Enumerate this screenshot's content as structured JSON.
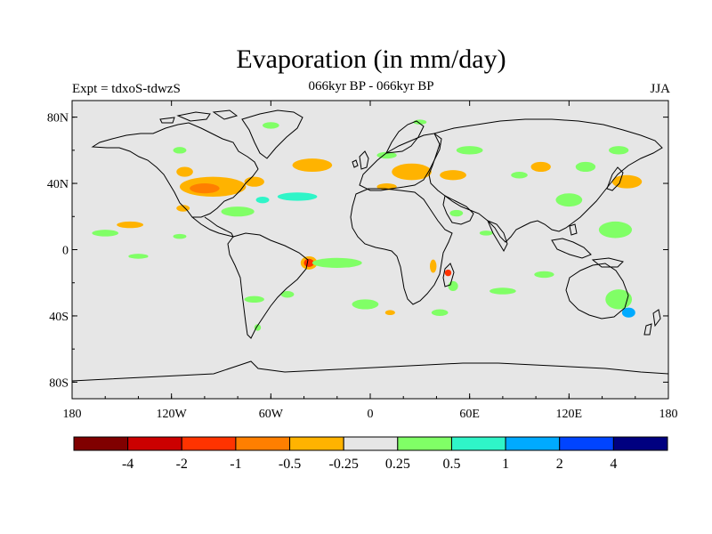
{
  "title": "Evaporation (in mm/day)",
  "subtitle": "066kyr BP - 066kyr BP",
  "left_label": "Expt = tdxoS-tdwzS",
  "right_label": "JJA",
  "map": {
    "projection": "cylindrical-equidistant",
    "lon_range": [
      -180,
      180
    ],
    "lat_range": [
      -90,
      90
    ],
    "background_color": "#e6e6e6",
    "coastline_color": "#000000",
    "x_ticks": [
      {
        "value": -180,
        "label": "180"
      },
      {
        "value": -120,
        "label": "120W"
      },
      {
        "value": -60,
        "label": "60W"
      },
      {
        "value": 0,
        "label": "0"
      },
      {
        "value": 60,
        "label": "60E"
      },
      {
        "value": 120,
        "label": "120E"
      },
      {
        "value": 180,
        "label": "180"
      }
    ],
    "y_ticks": [
      {
        "value": 80,
        "label": "80N"
      },
      {
        "value": 40,
        "label": "40N"
      },
      {
        "value": 0,
        "label": "0"
      },
      {
        "value": -40,
        "label": "40S"
      },
      {
        "value": -80,
        "label": "80S"
      }
    ],
    "anomaly_patches": [
      {
        "lon": -95,
        "lat": 38,
        "rx": 20,
        "ry": 6,
        "color": "#ffb300"
      },
      {
        "lon": -100,
        "lat": 37,
        "rx": 9,
        "ry": 3,
        "color": "#ff7f00"
      },
      {
        "lon": -112,
        "lat": 47,
        "rx": 5,
        "ry": 3,
        "color": "#ffb300"
      },
      {
        "lon": -70,
        "lat": 41,
        "rx": 6,
        "ry": 3,
        "color": "#ffb300"
      },
      {
        "lon": -35,
        "lat": 51,
        "rx": 12,
        "ry": 4,
        "color": "#ffb300"
      },
      {
        "lon": 25,
        "lat": 47,
        "rx": 12,
        "ry": 5,
        "color": "#ffb300"
      },
      {
        "lon": 50,
        "lat": 45,
        "rx": 8,
        "ry": 3,
        "color": "#ffb300"
      },
      {
        "lon": 103,
        "lat": 50,
        "rx": 6,
        "ry": 3,
        "color": "#ffb300"
      },
      {
        "lon": 155,
        "lat": 41,
        "rx": 9,
        "ry": 4,
        "color": "#ffb300"
      },
      {
        "lon": -145,
        "lat": 15,
        "rx": 8,
        "ry": 2,
        "color": "#ffb300"
      },
      {
        "lon": -113,
        "lat": 25,
        "rx": 4,
        "ry": 2,
        "color": "#ffb300"
      },
      {
        "lon": 10,
        "lat": 38,
        "rx": 6,
        "ry": 2,
        "color": "#ffb300"
      },
      {
        "lon": -37,
        "lat": -8,
        "rx": 5,
        "ry": 4,
        "color": "#ffb300"
      },
      {
        "lon": -37,
        "lat": -8,
        "rx": 3,
        "ry": 2.5,
        "color": "#ff3300"
      },
      {
        "lon": 38,
        "lat": -10,
        "rx": 2,
        "ry": 4,
        "color": "#ffb300"
      },
      {
        "lon": 47,
        "lat": -14,
        "rx": 2,
        "ry": 2,
        "color": "#ff3300"
      },
      {
        "lon": 12,
        "lat": -38,
        "rx": 3,
        "ry": 1.5,
        "color": "#ffb300"
      },
      {
        "lon": -44,
        "lat": 32,
        "rx": 12,
        "ry": 2.5,
        "color": "#2ff5c8"
      },
      {
        "lon": 156,
        "lat": -38,
        "rx": 4,
        "ry": 3,
        "color": "#00aaff"
      },
      {
        "lon": -65,
        "lat": 30,
        "rx": 4,
        "ry": 2,
        "color": "#2ff5c8"
      },
      {
        "lon": -160,
        "lat": 10,
        "rx": 8,
        "ry": 2,
        "color": "#80ff66"
      },
      {
        "lon": -115,
        "lat": 8,
        "rx": 4,
        "ry": 1.5,
        "color": "#80ff66"
      },
      {
        "lon": -140,
        "lat": -4,
        "rx": 6,
        "ry": 1.5,
        "color": "#80ff66"
      },
      {
        "lon": -80,
        "lat": 23,
        "rx": 10,
        "ry": 3,
        "color": "#80ff66"
      },
      {
        "lon": -20,
        "lat": -8,
        "rx": 15,
        "ry": 3,
        "color": "#80ff66"
      },
      {
        "lon": -3,
        "lat": -33,
        "rx": 8,
        "ry": 3,
        "color": "#80ff66"
      },
      {
        "lon": 42,
        "lat": -38,
        "rx": 5,
        "ry": 2,
        "color": "#80ff66"
      },
      {
        "lon": 50,
        "lat": -22,
        "rx": 3,
        "ry": 3,
        "color": "#80ff66"
      },
      {
        "lon": -70,
        "lat": -30,
        "rx": 6,
        "ry": 2,
        "color": "#80ff66"
      },
      {
        "lon": -50,
        "lat": -27,
        "rx": 4,
        "ry": 2,
        "color": "#80ff66"
      },
      {
        "lon": 80,
        "lat": -25,
        "rx": 8,
        "ry": 2,
        "color": "#80ff66"
      },
      {
        "lon": 105,
        "lat": -15,
        "rx": 6,
        "ry": 2,
        "color": "#80ff66"
      },
      {
        "lon": 150,
        "lat": -30,
        "rx": 8,
        "ry": 6,
        "color": "#80ff66"
      },
      {
        "lon": 148,
        "lat": 12,
        "rx": 10,
        "ry": 5,
        "color": "#80ff66"
      },
      {
        "lon": 120,
        "lat": 30,
        "rx": 8,
        "ry": 4,
        "color": "#80ff66"
      },
      {
        "lon": 130,
        "lat": 50,
        "rx": 6,
        "ry": 3,
        "color": "#80ff66"
      },
      {
        "lon": 150,
        "lat": 60,
        "rx": 6,
        "ry": 2.5,
        "color": "#80ff66"
      },
      {
        "lon": 60,
        "lat": 60,
        "rx": 8,
        "ry": 2.5,
        "color": "#80ff66"
      },
      {
        "lon": 90,
        "lat": 45,
        "rx": 5,
        "ry": 2,
        "color": "#80ff66"
      },
      {
        "lon": 10,
        "lat": 57,
        "rx": 6,
        "ry": 2,
        "color": "#80ff66"
      },
      {
        "lon": -60,
        "lat": 75,
        "rx": 5,
        "ry": 2,
        "color": "#80ff66"
      },
      {
        "lon": 30,
        "lat": 77,
        "rx": 4,
        "ry": 1.5,
        "color": "#80ff66"
      },
      {
        "lon": -115,
        "lat": 60,
        "rx": 4,
        "ry": 2,
        "color": "#80ff66"
      },
      {
        "lon": -68,
        "lat": -47,
        "rx": 2,
        "ry": 2,
        "color": "#80ff66"
      },
      {
        "lon": 52,
        "lat": 22,
        "rx": 4,
        "ry": 2,
        "color": "#80ff66"
      },
      {
        "lon": 70,
        "lat": 10,
        "rx": 4,
        "ry": 1.5,
        "color": "#80ff66"
      }
    ]
  },
  "colorbar": {
    "colors": [
      "#800000",
      "#cc0000",
      "#ff3300",
      "#ff7f00",
      "#ffb300",
      "#e6e6e6",
      "#80ff66",
      "#2ff5c8",
      "#00aaff",
      "#0044ff",
      "#000080"
    ],
    "labels": [
      "-4",
      "-2",
      "-1",
      "-0.5",
      "-0.25",
      "0.25",
      "0.5",
      "1",
      "2",
      "4"
    ]
  }
}
